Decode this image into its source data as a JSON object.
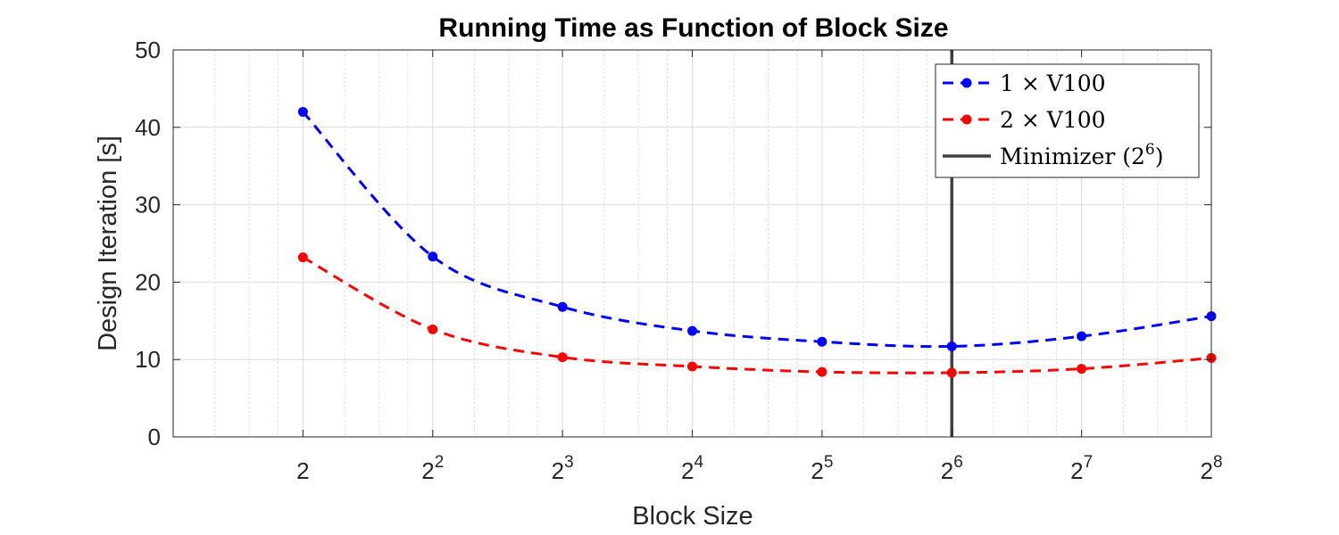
{
  "chart_data": {
    "type": "line",
    "title": "Running Time as Function of Block Size",
    "xlabel": "Block Size",
    "ylabel": "Design Iteration [s]",
    "x_scale": "log2",
    "x": [
      2,
      4,
      8,
      16,
      32,
      64,
      128,
      256
    ],
    "x_tick_labels": [
      {
        "base": "2",
        "exp": ""
      },
      {
        "base": "2",
        "exp": "2"
      },
      {
        "base": "2",
        "exp": "3"
      },
      {
        "base": "2",
        "exp": "4"
      },
      {
        "base": "2",
        "exp": "5"
      },
      {
        "base": "2",
        "exp": "6"
      },
      {
        "base": "2",
        "exp": "7"
      },
      {
        "base": "2",
        "exp": "8"
      }
    ],
    "xlim": [
      1,
      256
    ],
    "ylim": [
      0,
      50
    ],
    "y_ticks": [
      0,
      10,
      20,
      30,
      40,
      50
    ],
    "grid": true,
    "legend_position": "top-right",
    "series": [
      {
        "name": "1 × V100",
        "color": "#0000ff",
        "style": "dashed-markers",
        "values": [
          42.0,
          23.3,
          16.8,
          13.7,
          12.3,
          11.7,
          13.0,
          15.6
        ]
      },
      {
        "name": "2 × V100",
        "color": "#ff0000",
        "style": "dashed-markers",
        "values": [
          23.2,
          13.9,
          10.3,
          9.1,
          8.4,
          8.3,
          8.8,
          10.2
        ]
      }
    ],
    "reference_line": {
      "name_prefix": "Minimizer (2",
      "name_exp": "6",
      "name_suffix": ")",
      "x": 64,
      "color": "#404040"
    }
  }
}
